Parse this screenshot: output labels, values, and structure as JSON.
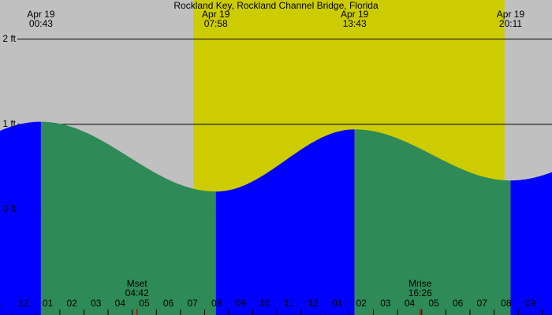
{
  "chart_data": {
    "type": "tide",
    "title": "Rockland Key, Rockland Channel Bridge, Florida",
    "xlim": [
      -0.98,
      21.9
    ],
    "ylim": [
      -1.24,
      2.46
    ],
    "yticks": [
      {
        "value": 0,
        "label": "0 ft"
      },
      {
        "value": 1,
        "label": "1 ft"
      },
      {
        "value": 2,
        "label": "2 ft"
      }
    ],
    "xticks": [
      {
        "value": -1,
        "label": "1"
      },
      {
        "value": 0,
        "label": "12"
      },
      {
        "value": 1,
        "label": "01"
      },
      {
        "value": 2,
        "label": "02"
      },
      {
        "value": 3,
        "label": "03"
      },
      {
        "value": 4,
        "label": "04"
      },
      {
        "value": 5,
        "label": "05"
      },
      {
        "value": 6,
        "label": "06"
      },
      {
        "value": 7,
        "label": "07"
      },
      {
        "value": 8,
        "label": "08"
      },
      {
        "value": 9,
        "label": "09"
      },
      {
        "value": 10,
        "label": "10"
      },
      {
        "value": 11,
        "label": "11"
      },
      {
        "value": 12,
        "label": "12"
      },
      {
        "value": 13,
        "label": "01"
      },
      {
        "value": 14,
        "label": "02"
      },
      {
        "value": 15,
        "label": "03"
      },
      {
        "value": 16,
        "label": "04"
      },
      {
        "value": 17,
        "label": "05"
      },
      {
        "value": 18,
        "label": "06"
      },
      {
        "value": 19,
        "label": "07"
      },
      {
        "value": 20,
        "label": "08"
      },
      {
        "value": 21,
        "label": "09"
      }
    ],
    "daylight": [
      7.03,
      19.93
    ],
    "extremes": [
      {
        "date": "Apr 19",
        "time": "00:43",
        "x": 0.717,
        "height": 1.03
      },
      {
        "date": "Apr 19",
        "time": "07:58",
        "x": 7.967,
        "height": 0.21
      },
      {
        "date": "Apr 19",
        "time": "13:43",
        "x": 13.717,
        "height": 0.94
      },
      {
        "date": "Apr 19",
        "time": "20:11",
        "x": 20.183,
        "height": 0.34
      }
    ],
    "moon": [
      {
        "name": "Mset",
        "time": "04:42",
        "x": 4.7
      },
      {
        "name": "Mrise",
        "time": "16:26",
        "x": 16.433
      }
    ],
    "colors": {
      "night": "#c0c0c0",
      "day": "#cccc00",
      "rising": "#0000ff",
      "falling": "#2e8b57",
      "moon": "#cc0000"
    }
  }
}
